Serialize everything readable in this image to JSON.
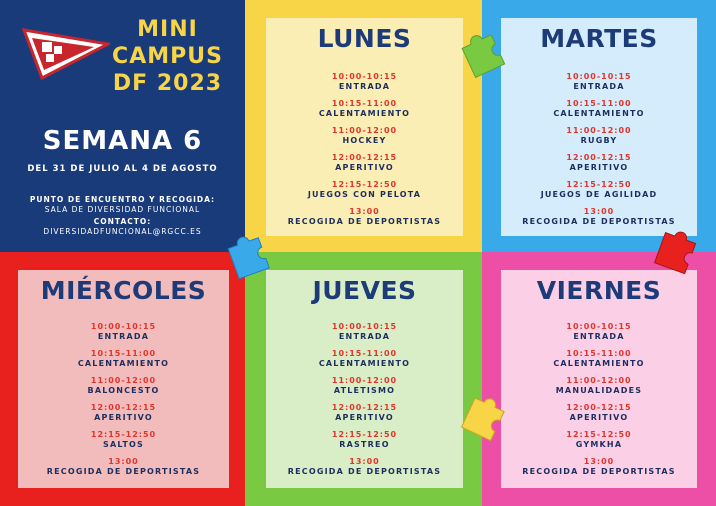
{
  "header": {
    "title_lines": [
      "MINI",
      "CAMPUS",
      "DF 2023"
    ],
    "week": "SEMANA 6",
    "dates": "DEL 31 DE JULIO AL 4 DE AGOSTO",
    "meeting_label": "PUNTO DE ENCUENTRO Y RECOGIDA:",
    "meeting_place": "SALA DE DIVERSIDAD FUNCIONAL",
    "contact_label": "CONTACTO:",
    "contact_email": "DIVERSIDADFUNCIONAL@RGCC.ES"
  },
  "colors": {
    "navy": "#1a3b7a",
    "yellow": "#f7d547",
    "blue": "#3aa9ea",
    "red": "#e8211f",
    "green": "#7ac943",
    "pink": "#ee4fa6"
  },
  "days": [
    {
      "name": "LUNES",
      "slots": [
        {
          "time": "10:00-10:15",
          "activity": "ENTRADA"
        },
        {
          "time": "10:15-11:00",
          "activity": "CALENTAMIENTO"
        },
        {
          "time": "11:00-12:00",
          "activity": "HOCKEY"
        },
        {
          "time": "12:00-12:15",
          "activity": "APERITIVO"
        },
        {
          "time": "12:15-12:50",
          "activity": "JUEGOS CON PELOTA"
        },
        {
          "time": "13:00",
          "activity": "RECOGIDA DE DEPORTISTAS"
        }
      ]
    },
    {
      "name": "MARTES",
      "slots": [
        {
          "time": "10:00-10:15",
          "activity": "ENTRADA"
        },
        {
          "time": "10:15-11:00",
          "activity": "CALENTAMIENTO"
        },
        {
          "time": "11:00-12:00",
          "activity": "RUGBY"
        },
        {
          "time": "12:00-12:15",
          "activity": "APERITIVO"
        },
        {
          "time": "12:15-12:50",
          "activity": "JUEGOS DE AGILIDAD"
        },
        {
          "time": "13:00",
          "activity": "RECOGIDA DE DEPORTISTAS"
        }
      ]
    },
    {
      "name": "MIÉRCOLES",
      "slots": [
        {
          "time": "10:00-10:15",
          "activity": "ENTRADA"
        },
        {
          "time": "10:15-11:00",
          "activity": "CALENTAMIENTO"
        },
        {
          "time": "11:00-12:00",
          "activity": "BALONCESTO"
        },
        {
          "time": "12:00-12:15",
          "activity": "APERITIVO"
        },
        {
          "time": "12:15-12:50",
          "activity": "SALTOS"
        },
        {
          "time": "13:00",
          "activity": "RECOGIDA DE DEPORTISTAS"
        }
      ]
    },
    {
      "name": "JUEVES",
      "slots": [
        {
          "time": "10:00-10:15",
          "activity": "ENTRADA"
        },
        {
          "time": "10:15-11:00",
          "activity": "CALENTAMIENTO"
        },
        {
          "time": "11:00-12:00",
          "activity": "ATLETISMO"
        },
        {
          "time": "12:00-12:15",
          "activity": "APERITIVO"
        },
        {
          "time": "12:15-12:50",
          "activity": "RASTREO"
        },
        {
          "time": "13:00",
          "activity": "RECOGIDA DE DEPORTISTAS"
        }
      ]
    },
    {
      "name": "VIERNES",
      "slots": [
        {
          "time": "10:00-10:15",
          "activity": "ENTRADA"
        },
        {
          "time": "10:15-11:00",
          "activity": "CALENTAMIENTO"
        },
        {
          "time": "11:00-12:00",
          "activity": "MANUALIDADES"
        },
        {
          "time": "12:00-12:15",
          "activity": "APERITIVO"
        },
        {
          "time": "12:15-12:50",
          "activity": "GYMKHA"
        },
        {
          "time": "13:00",
          "activity": "RECOGIDA DE DEPORTISTAS"
        }
      ]
    }
  ]
}
